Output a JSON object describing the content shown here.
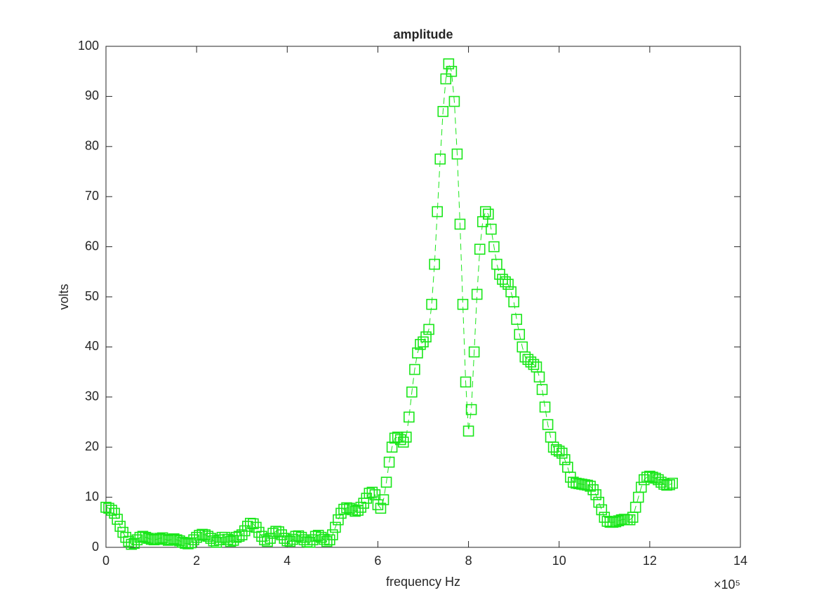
{
  "chart_data": {
    "type": "line",
    "title": "amplitude",
    "x_label": "frequency Hz",
    "y_label": "volts",
    "x_exponent_label": "×10⁵",
    "x": [
      0,
      6250,
      12500,
      18750,
      25000,
      31250,
      37500,
      43750,
      50000,
      56250,
      62500,
      68750,
      75000,
      81250,
      87500,
      93750,
      100000,
      106250,
      112500,
      118750,
      125000,
      131250,
      137500,
      143750,
      150000,
      156250,
      162500,
      168750,
      175000,
      181250,
      187500,
      193750,
      200000,
      206250,
      212500,
      218750,
      225000,
      231250,
      237500,
      243750,
      250000,
      256250,
      262500,
      268750,
      275000,
      281250,
      287500,
      293750,
      300000,
      306250,
      312500,
      318750,
      325000,
      331250,
      337500,
      343750,
      350000,
      356250,
      362500,
      368750,
      375000,
      381250,
      387500,
      393750,
      400000,
      406250,
      412500,
      418750,
      425000,
      431250,
      437500,
      443750,
      450000,
      456250,
      462500,
      468750,
      475000,
      481250,
      487500,
      493750,
      500000,
      506250,
      512500,
      518750,
      525000,
      531250,
      537500,
      543750,
      550000,
      556250,
      562500,
      568750,
      575000,
      581250,
      587500,
      593750,
      600000,
      606250,
      612500,
      618750,
      625000,
      631250,
      637500,
      643750,
      650000,
      656250,
      662500,
      668750,
      675000,
      681250,
      687500,
      693750,
      700000,
      706250,
      712500,
      718750,
      725000,
      731250,
      737500,
      743750,
      750000,
      756250,
      762500,
      768750,
      775000,
      781250,
      787500,
      793750,
      800000,
      806250,
      812500,
      818750,
      825000,
      831250,
      837500,
      843750,
      850000,
      856250,
      862500,
      868750,
      875000,
      881250,
      887500,
      893750,
      900000,
      906250,
      912500,
      918750,
      925000,
      931250,
      937500,
      943750,
      950000,
      956250,
      962500,
      968750,
      975000,
      981250,
      987500,
      993750,
      1000000,
      1006250,
      1012500,
      1018750,
      1025000,
      1031250,
      1037500,
      1043750,
      1050000,
      1056250,
      1062500,
      1068750,
      1075000,
      1081250,
      1087500,
      1093750,
      1100000,
      1106250,
      1112500,
      1118750,
      1125000,
      1131250,
      1137500,
      1143750,
      1150000,
      1156250,
      1162500,
      1168750,
      1175000,
      1181250,
      1187500,
      1193750,
      1200000,
      1206250,
      1212500,
      1218750,
      1225000,
      1231250,
      1237500,
      1243750,
      1250000
    ],
    "series": [
      {
        "name": "amplitude",
        "color": "#19e619",
        "values": [
          8,
          7.8,
          7.4,
          6.8,
          5.6,
          4.2,
          3,
          2,
          1.2,
          0.6,
          0.8,
          1.5,
          2,
          2.2,
          2,
          1.8,
          1.6,
          1.5,
          1.6,
          1.8,
          1.9,
          1.6,
          1.4,
          1.5,
          1.7,
          1.5,
          1.3,
          1,
          0.8,
          0.7,
          0.9,
          1.5,
          2,
          2.4,
          2.6,
          2.5,
          2.2,
          1.8,
          1.3,
          1,
          1.5,
          2,
          2,
          1.6,
          1.2,
          1.4,
          2,
          2.2,
          2.5,
          3.3,
          4.2,
          4.8,
          4.7,
          4,
          3,
          2.2,
          1.5,
          1.2,
          1.8,
          2.8,
          3.2,
          3.1,
          2.5,
          1.8,
          1.3,
          1.2,
          1.6,
          2.2,
          2.3,
          2,
          1.5,
          1.1,
          1,
          1.5,
          2.2,
          2.4,
          2,
          1.6,
          1.2,
          1.5,
          2.5,
          4,
          5.5,
          6.8,
          7.6,
          7.9,
          7.8,
          7.5,
          7.2,
          7.4,
          8,
          8.8,
          9.8,
          10.8,
          11,
          10.5,
          8.5,
          7.8,
          9.5,
          13,
          17,
          20,
          21.8,
          22,
          21.5,
          21,
          22,
          26,
          31,
          35.5,
          38.8,
          40.5,
          41,
          42,
          43.5,
          48.5,
          56.5,
          67,
          77.5,
          87,
          93.5,
          96.5,
          95,
          89,
          78.5,
          64.5,
          48.5,
          33,
          23.2,
          27.5,
          39,
          50.5,
          59.5,
          65,
          67,
          66.5,
          63.5,
          60,
          56.5,
          54.5,
          53.5,
          53,
          52.5,
          51,
          49,
          45.5,
          42.5,
          40,
          38,
          37.5,
          37,
          36.5,
          36,
          34,
          31.5,
          28,
          24.5,
          22,
          20,
          19.5,
          19.2,
          18.8,
          17.5,
          16,
          14,
          13,
          12.8,
          12.7,
          12.6,
          12.5,
          12.4,
          12.2,
          11.5,
          10.5,
          9,
          7.5,
          6,
          5.2,
          5,
          5,
          5.1,
          5.3,
          5.5,
          5.6,
          5.5,
          5.5,
          6,
          8,
          10,
          12,
          13.5,
          14,
          14.2,
          14,
          13.8,
          13.5,
          13,
          12.6,
          12.4,
          12.5,
          12.8
        ]
      }
    ],
    "xlim": [
      0,
      1400000
    ],
    "xticks": [
      {
        "value": 0,
        "label": "0"
      },
      {
        "value": 200000,
        "label": "2"
      },
      {
        "value": 400000,
        "label": "4"
      },
      {
        "value": 600000,
        "label": "6"
      },
      {
        "value": 800000,
        "label": "8"
      },
      {
        "value": 1000000,
        "label": "10"
      },
      {
        "value": 1200000,
        "label": "12"
      },
      {
        "value": 1400000,
        "label": "14"
      }
    ],
    "ylim": [
      0,
      100
    ],
    "yticks": [
      0,
      10,
      20,
      30,
      40,
      50,
      60,
      70,
      80,
      90,
      100
    ],
    "marker": "square",
    "line_style": "dashed",
    "grid": false
  }
}
